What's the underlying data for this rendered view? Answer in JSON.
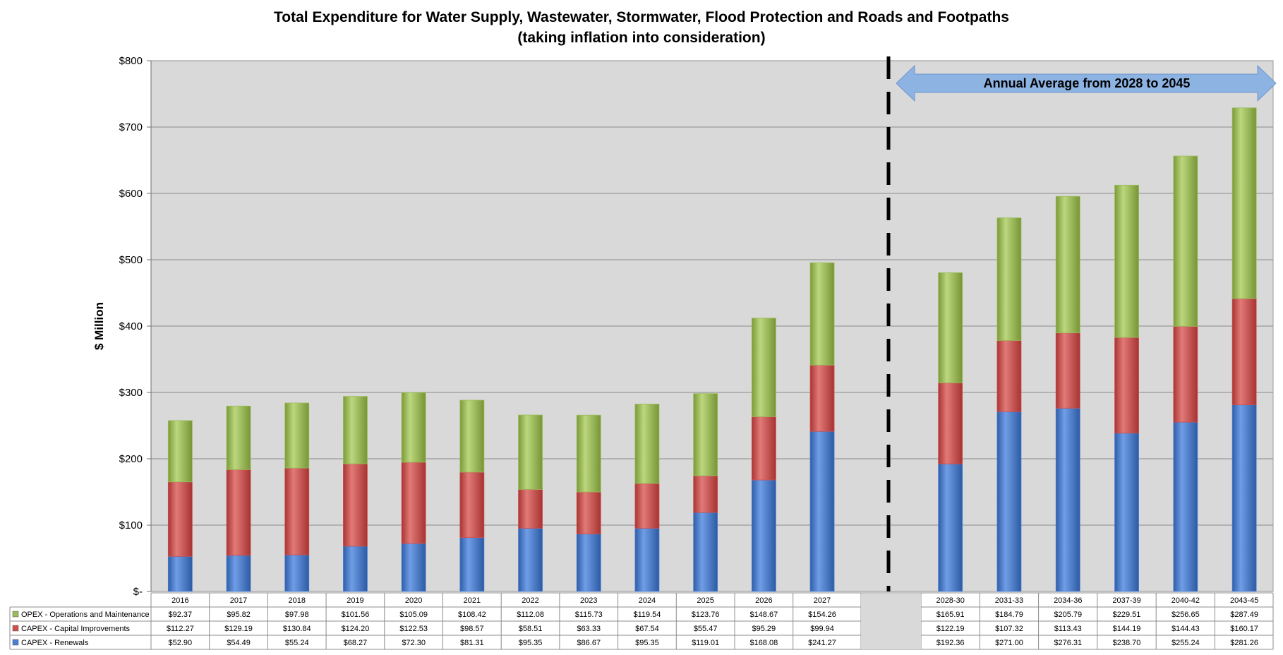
{
  "chart_data": {
    "type": "bar",
    "stacked": true,
    "title": "Total Expenditure for  Water Supply, Wastewater, Stormwater, Flood Protection and Roads and Footpaths",
    "subtitle": "(taking inflation into consideration)",
    "ylabel": "$ Million",
    "xlabel": "",
    "ylim": [
      0,
      800
    ],
    "yticks": [
      "$-",
      "$100",
      "$200",
      "$300",
      "$400",
      "$500",
      "$600",
      "$700",
      "$800"
    ],
    "grid": true,
    "legend_placement": "data-table-left",
    "categories": [
      "2016",
      "2017",
      "2018",
      "2019",
      "2020",
      "2021",
      "2022",
      "2023",
      "2024",
      "2025",
      "2026",
      "2027",
      "2028-30",
      "2031-33",
      "2034-36",
      "2037-39",
      "2040-42",
      "2043-45"
    ],
    "series": [
      {
        "name": "CAPEX - Renewals",
        "color": "#4a7fd1",
        "values": [
          52.9,
          54.49,
          55.24,
          68.27,
          72.3,
          81.31,
          95.35,
          86.67,
          95.35,
          119.01,
          168.08,
          241.27,
          192.36,
          271.0,
          276.31,
          238.7,
          255.24,
          281.26
        ],
        "labels": [
          "$52.90",
          "$54.49",
          "$55.24",
          "$68.27",
          "$72.30",
          "$81.31",
          "$95.35",
          "$86.67",
          "$95.35",
          "$119.01",
          "$168.08",
          "$241.27",
          "$192.36",
          "$271.00",
          "$276.31",
          "$238.70",
          "$255.24",
          "$281.26"
        ]
      },
      {
        "name": "CAPEX - Capital Improvements",
        "color": "#cf4f4d",
        "values": [
          112.27,
          129.19,
          130.84,
          124.2,
          122.53,
          98.57,
          58.51,
          63.33,
          67.54,
          55.47,
          95.29,
          99.94,
          122.19,
          107.32,
          113.43,
          144.19,
          144.43,
          160.17
        ],
        "labels": [
          "$112.27",
          "$129.19",
          "$130.84",
          "$124.20",
          "$122.53",
          "$98.57",
          "$58.51",
          "$63.33",
          "$67.54",
          "$55.47",
          "$95.29",
          "$99.94",
          "$122.19",
          "$107.32",
          "$113.43",
          "$144.19",
          "$144.43",
          "$160.17"
        ]
      },
      {
        "name": "OPEX - Operations and Maintenance",
        "color": "#9bbb59",
        "values": [
          92.37,
          95.82,
          97.98,
          101.56,
          105.09,
          108.42,
          112.08,
          115.73,
          119.54,
          123.76,
          148.67,
          154.26,
          165.91,
          184.79,
          205.79,
          229.51,
          256.65,
          287.49
        ],
        "labels": [
          "$92.37",
          "$95.82",
          "$97.98",
          "$101.56",
          "$105.09",
          "$108.42",
          "$112.08",
          "$115.73",
          "$119.54",
          "$123.76",
          "$148.67",
          "$154.26",
          "$165.91",
          "$184.79",
          "$205.79",
          "$229.51",
          "$256.65",
          "$287.49"
        ]
      }
    ],
    "annotations": [
      {
        "text": "Annual Average from 2028 to 2045",
        "type": "double-arrow",
        "color": "#8db3e2"
      }
    ],
    "separator": {
      "style": "dashed",
      "after_category": "2027"
    }
  }
}
